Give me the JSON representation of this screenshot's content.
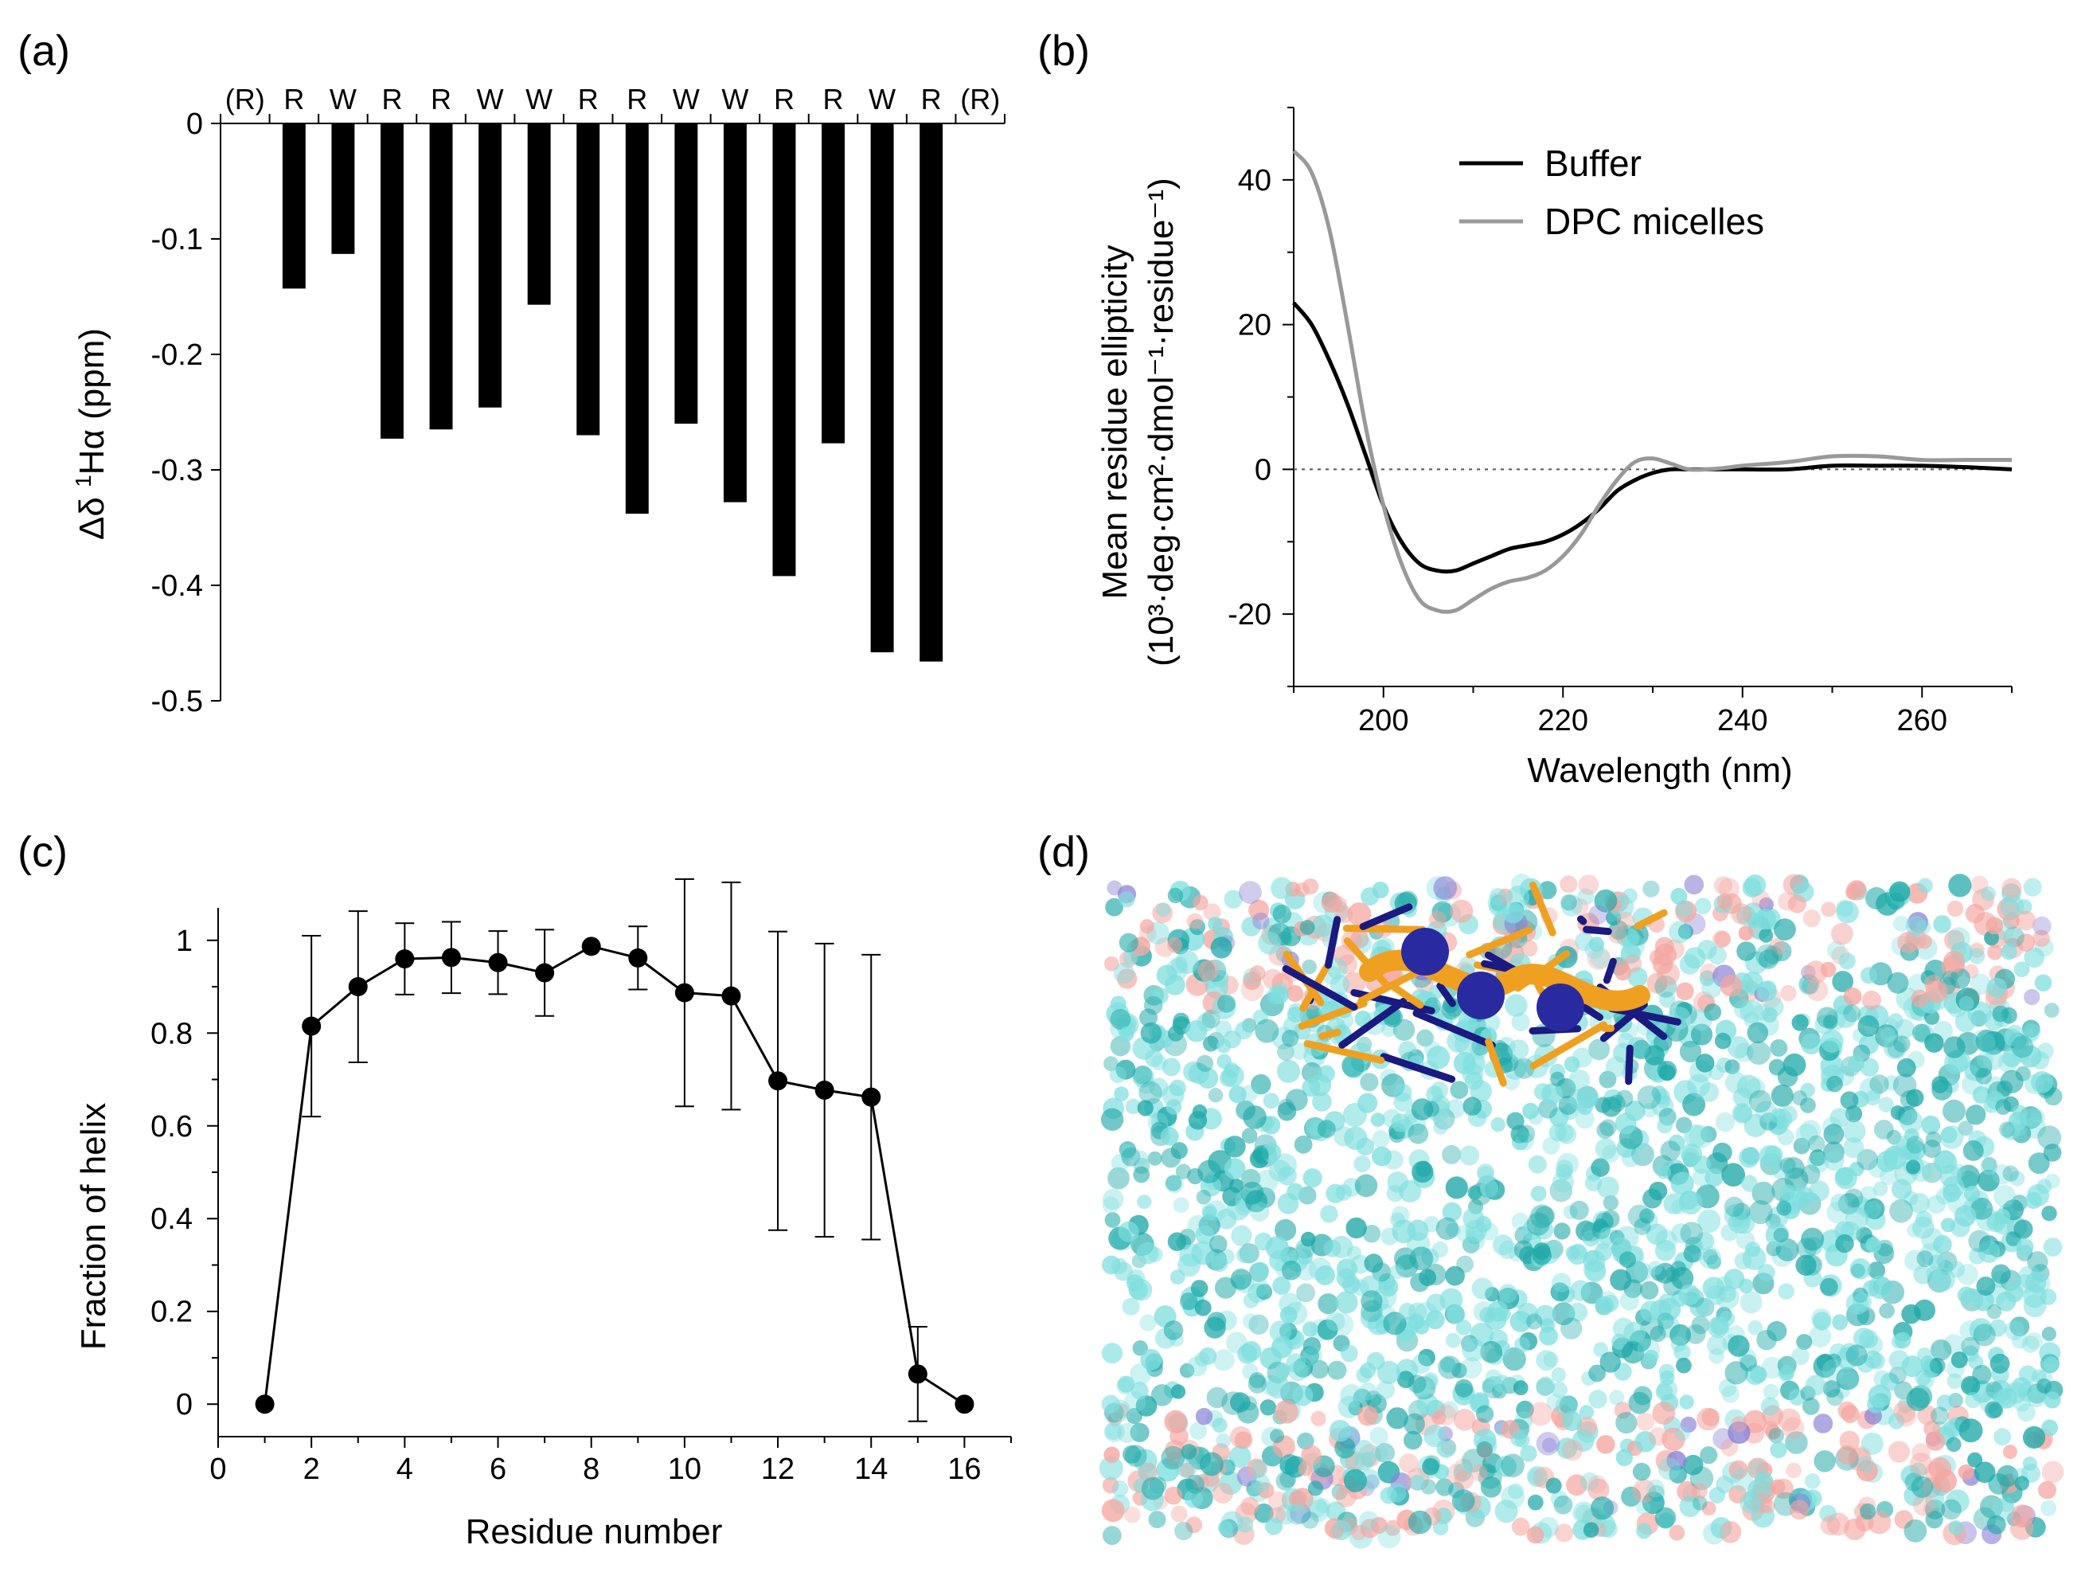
{
  "figure": {
    "panel_labels": [
      "(a)",
      "(b)",
      "(c)",
      "(d)"
    ]
  },
  "chart_data": [
    {
      "id": "a",
      "type": "bar",
      "ylabel_symbol": "Δδ ",
      "ylabel_sup": "1",
      "ylabel_rest": "Hα (ppm)",
      "ylim": [
        -0.5,
        0
      ],
      "yticks": [
        0,
        -0.1,
        -0.2,
        -0.3,
        -0.4,
        -0.5
      ],
      "ytick_labels": [
        "0",
        "-0.1",
        "-0.2",
        "-0.3",
        "-0.4",
        "-0.5"
      ],
      "categories": [
        "(R)",
        "R",
        "W",
        "R",
        "R",
        "W",
        "W",
        "R",
        "R",
        "W",
        "W",
        "R",
        "R",
        "W",
        "R",
        "(R)"
      ],
      "values": [
        null,
        -0.143,
        -0.113,
        -0.273,
        -0.265,
        -0.246,
        -0.157,
        -0.27,
        -0.338,
        -0.26,
        -0.328,
        -0.392,
        -0.277,
        -0.458,
        -0.466,
        null
      ]
    },
    {
      "id": "b",
      "type": "line",
      "xlabel": "Wavelength (nm)",
      "ylabel_line1": "Mean residue ellipticity",
      "ylabel_line2": "(10³·deg·cm²·dmol⁻¹·residue⁻¹)",
      "xlim": [
        190,
        270
      ],
      "ylim": [
        -30,
        50
      ],
      "xticks": [
        200,
        220,
        240,
        260
      ],
      "yticks": [
        -20,
        0,
        20,
        40
      ],
      "zero_line": true,
      "series": [
        {
          "name": "Buffer",
          "color": "#000000",
          "x": [
            190,
            192,
            194,
            196,
            198,
            200,
            202,
            204,
            206,
            208,
            210,
            212,
            214,
            216,
            218,
            220,
            222,
            224,
            226,
            228,
            230,
            232,
            234,
            236,
            238,
            240,
            245,
            250,
            255,
            260,
            265,
            270
          ],
          "y": [
            23,
            20,
            15,
            9,
            2,
            -5,
            -10,
            -13,
            -14,
            -14,
            -13,
            -12,
            -11,
            -10.5,
            -10,
            -9,
            -7.5,
            -5.5,
            -3,
            -1.5,
            -0.5,
            0,
            0,
            0,
            0,
            0,
            0,
            0.5,
            0.5,
            0.5,
            0.3,
            0
          ]
        },
        {
          "name": "DPC micelles",
          "color": "#999999",
          "x": [
            190,
            192,
            194,
            196,
            198,
            200,
            202,
            204,
            206,
            208,
            210,
            212,
            214,
            216,
            218,
            220,
            222,
            224,
            226,
            228,
            230,
            232,
            234,
            236,
            238,
            240,
            245,
            250,
            255,
            260,
            265,
            270
          ],
          "y": [
            44,
            41,
            33,
            20,
            6,
            -5,
            -13,
            -18,
            -19.5,
            -19.5,
            -18,
            -16.5,
            -15.5,
            -15,
            -14,
            -12,
            -9,
            -5,
            -1.5,
            1,
            1.5,
            0.8,
            0,
            0,
            0.2,
            0.5,
            1,
            1.8,
            1.8,
            1.3,
            1.3,
            1.3
          ]
        }
      ]
    },
    {
      "id": "c",
      "type": "line",
      "xlabel": "Residue number",
      "ylabel": "Fraction of helix",
      "xlim": [
        0,
        17
      ],
      "ylim": [
        -0.07,
        1.07
      ],
      "xticks": [
        0,
        2,
        4,
        6,
        8,
        10,
        12,
        14,
        16
      ],
      "yticks": [
        0,
        0.2,
        0.4,
        0.6,
        0.8,
        1
      ],
      "ytick_labels": [
        "0",
        "0.2",
        "0.4",
        "0.6",
        "0.8",
        "1"
      ],
      "series": [
        {
          "name": "helix fraction",
          "x": [
            1,
            2,
            3,
            4,
            5,
            6,
            7,
            8,
            9,
            10,
            11,
            12,
            13,
            14,
            15,
            16
          ],
          "y": [
            0,
            0.815,
            0.9,
            0.96,
            0.963,
            0.952,
            0.93,
            0.987,
            0.962,
            0.887,
            0.88,
            0.697,
            0.677,
            0.662,
            0.065,
            0.0
          ],
          "err": [
            0,
            0.195,
            0.163,
            0.077,
            0.077,
            0.068,
            0.093,
            0,
            0.068,
            0.245,
            0.245,
            0.322,
            0.316,
            0.307,
            0.102,
            0
          ]
        }
      ]
    }
  ]
}
